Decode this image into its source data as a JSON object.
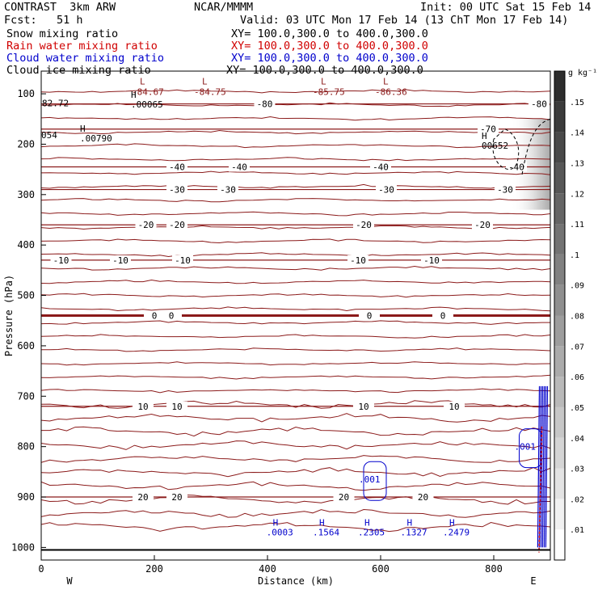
{
  "header": {
    "model": "CONTRAST  3km ARW",
    "center": "NCAR/MMMM",
    "init": "Init: 00 UTC Sat 15 Feb 14",
    "fcst": "Fcst:   51 h",
    "valid": "Valid: 03 UTC Mon 17 Feb 14 (13 ChT Mon 17 Feb 14)"
  },
  "fields": [
    {
      "name": "Snow mixing ratio",
      "xy": "XY= 100.0,300.0 to 400.0,300.0",
      "color": "#000000"
    },
    {
      "name": "Rain water mixing ratio",
      "xy": "XY= 100.0,300.0 to 400.0,300.0",
      "color": "#d00000"
    },
    {
      "name": "Cloud water mixing ratio",
      "xy": "XY= 100.0,300.0 to 400.0,300.0",
      "color": "#0000cc"
    },
    {
      "name": "Cloud ice mixing ratio",
      "xy": "XY= 100.0,300.0 to 400.0,300.0",
      "color": "#000000"
    }
  ],
  "colors": {
    "temperature": "#8b1a1a",
    "cloud_water": "#0000cc",
    "rain_water": "#d00000",
    "snow": "#000000"
  },
  "chart_data": {
    "type": "contour-cross-section",
    "xlabel": "Distance (km)",
    "ylabel": "Pressure (hPa)",
    "xlim": [
      0,
      900
    ],
    "ylim": [
      1025,
      55
    ],
    "xticks": [
      0,
      200,
      400,
      600,
      800
    ],
    "yticks": [
      100,
      200,
      300,
      400,
      500,
      600,
      700,
      800,
      900,
      1000
    ],
    "x_end_labels": {
      "left": "W",
      "right": "E"
    },
    "colorbar": {
      "unit": "g kg⁻¹",
      "ticks": [
        ".01",
        ".02",
        ".03",
        ".04",
        ".05",
        ".06",
        ".07",
        ".08",
        ".09",
        ".1",
        ".11",
        ".12",
        ".13",
        ".14",
        ".15"
      ],
      "values": [
        0.01,
        0.02,
        0.03,
        0.04,
        0.05,
        0.06,
        0.07,
        0.08,
        0.09,
        0.1,
        0.11,
        0.12,
        0.13,
        0.14,
        0.15
      ]
    },
    "isotherms": [
      {
        "label": "-80",
        "p": 120,
        "labels_at": [
          395,
          880
        ]
      },
      {
        "label": "-70",
        "p": 170,
        "labels_at": [
          790
        ]
      },
      {
        "label": "-40",
        "p": 245,
        "labels_at": [
          240,
          350,
          600,
          840
        ]
      },
      {
        "label": "-30",
        "p": 290,
        "labels_at": [
          240,
          330,
          610,
          820
        ]
      },
      {
        "label": "-20",
        "p": 360,
        "labels_at": [
          185,
          240,
          570,
          780
        ]
      },
      {
        "label": "-10",
        "p": 430,
        "labels_at": [
          35,
          140,
          250,
          560,
          690
        ]
      },
      {
        "label": "0",
        "p": 540,
        "labels_at": [
          200,
          230,
          580,
          710
        ]
      },
      {
        "label": "10",
        "p": 720,
        "labels_at": [
          180,
          240,
          570,
          730
        ]
      },
      {
        "label": "20",
        "p": 900,
        "labels_at": [
          180,
          240,
          535,
          675
        ]
      }
    ],
    "min_labels": [
      {
        "marker": "L",
        "value": "-84.67",
        "x": 180,
        "p": 78
      },
      {
        "marker": "L",
        "value": "-84.75",
        "x": 290,
        "p": 78
      },
      {
        "marker": "L",
        "value": "-85.75",
        "x": 500,
        "p": 78
      },
      {
        "marker": "L",
        "value": "-86.36",
        "x": 610,
        "p": 78
      }
    ],
    "max_labels": [
      {
        "marker": "H",
        "value": ".00065",
        "x": 170,
        "p": 108
      },
      {
        "marker": "H",
        "value": ".00790",
        "x": 80,
        "p": 175
      },
      {
        "marker": "H",
        "value": "00652",
        "x": 790,
        "p": 190
      }
    ],
    "edge_values": [
      "82.72",
      "054"
    ],
    "cloud_water_contours": [
      {
        "label": ".001",
        "x": 590,
        "p": 865
      },
      {
        "label": ".001",
        "x": 865,
        "p": 800
      }
    ],
    "cloud_water_maxima": [
      {
        "marker": "H",
        "value": ".0003",
        "x": 418,
        "p": 970
      },
      {
        "marker": "H",
        "value": ".1564",
        "x": 500,
        "p": 970
      },
      {
        "marker": "H",
        "value": ".2305",
        "x": 580,
        "p": 970
      },
      {
        "marker": "H",
        "value": ".1327",
        "x": 655,
        "p": 970
      },
      {
        "marker": "H",
        "value": ".2479",
        "x": 730,
        "p": 970
      }
    ]
  }
}
